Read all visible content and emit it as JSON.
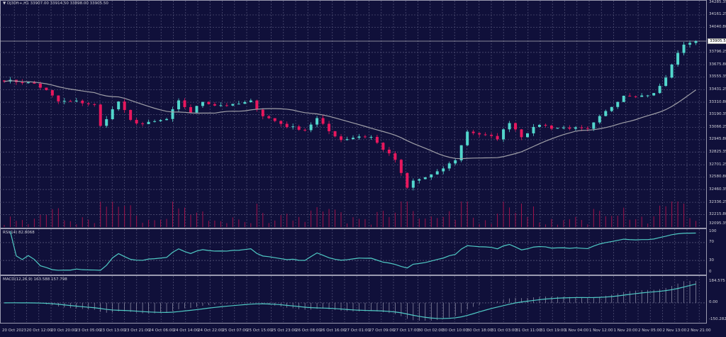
{
  "header": {
    "symbol": "DJ30ft+,H1",
    "open": "33907.00",
    "high": "33914.50",
    "low": "33898.00",
    "close": "33905.50"
  },
  "colors": {
    "background": "#10103a",
    "grid": "#4c4c72",
    "up": "#52d6cc",
    "down": "#e8175d",
    "ma": "#a0a0a8",
    "indicator": "#4fc9c4",
    "volume": "#a0124a"
  },
  "price_axis": [
    "34285.35",
    "34161.25",
    "34040.80",
    "33905.50",
    "33796.25",
    "33675.80",
    "33555.35",
    "33431.25",
    "33310.80",
    "33190.35",
    "33066.25",
    "32945.80",
    "32825.35",
    "32701.25",
    "32580.80",
    "32460.35",
    "32336.25",
    "32215.80",
    "32095.35"
  ],
  "current_price": "33905.50",
  "rsi": {
    "label": "RSI(14) 82.8068",
    "levels": [
      "100",
      "70",
      "30",
      "0"
    ]
  },
  "macd": {
    "label": "MACD(12,26,9) 163.588 157.798",
    "levels": [
      "184.575",
      "0.00",
      "-150.282"
    ]
  },
  "time_axis": [
    "20 Oct 2023",
    "20 Oct 12:00",
    "20 Oct 20:00",
    "23 Oct 05:00",
    "23 Oct 13:00",
    "23 Oct 21:00",
    "24 Oct 06:00",
    "24 Oct 14:00",
    "24 Oct 22:00",
    "25 Oct 07:00",
    "25 Oct 15:00",
    "25 Oct 23:00",
    "26 Oct 08:00",
    "26 Oct 16:00",
    "27 Oct 01:00",
    "27 Oct 09:00",
    "27 Oct 17:00",
    "30 Oct 02:00",
    "30 Oct 10:00",
    "30 Oct 18:00",
    "31 Oct 03:00",
    "31 Oct 11:00",
    "31 Oct 19:00",
    "1 Nov 04:00",
    "1 Nov 12:00",
    "1 Nov 20:00",
    "2 Nov 05:00",
    "2 Nov 13:00",
    "2 Nov 21:00"
  ],
  "chart_data": {
    "type": "candlestick",
    "price_range": [
      32095.35,
      34285.35
    ],
    "close_keypoints": [
      [
        0,
        33525
      ],
      [
        5,
        33491
      ],
      [
        7,
        33422
      ],
      [
        9,
        33318
      ],
      [
        12,
        33318
      ],
      [
        15,
        33283
      ],
      [
        16,
        33076
      ],
      [
        19,
        33318
      ],
      [
        21,
        33131
      ],
      [
        23,
        33097
      ],
      [
        27,
        33145
      ],
      [
        29,
        33318
      ],
      [
        31,
        33214
      ],
      [
        33,
        33318
      ],
      [
        35,
        33283
      ],
      [
        38,
        33283
      ],
      [
        41,
        33318
      ],
      [
        43,
        33180
      ],
      [
        47,
        33076
      ],
      [
        50,
        33042
      ],
      [
        52,
        33152
      ],
      [
        54,
        33028
      ],
      [
        56,
        32945
      ],
      [
        59,
        32979
      ],
      [
        61,
        32972
      ],
      [
        63,
        32855
      ],
      [
        65,
        32751
      ],
      [
        67,
        32475
      ],
      [
        68,
        32544
      ],
      [
        70,
        32579
      ],
      [
        72,
        32627
      ],
      [
        75,
        32751
      ],
      [
        77,
        33028
      ],
      [
        79,
        33000
      ],
      [
        82,
        32959
      ],
      [
        84,
        33118
      ],
      [
        86,
        32979
      ],
      [
        89,
        33097
      ],
      [
        91,
        33062
      ],
      [
        94,
        33062
      ],
      [
        97,
        33042
      ],
      [
        99,
        33166
      ],
      [
        101,
        33270
      ],
      [
        103,
        33380
      ],
      [
        106,
        33373
      ],
      [
        108,
        33394
      ],
      [
        110,
        33546
      ],
      [
        111,
        33684
      ],
      [
        113,
        33878
      ],
      [
        115,
        33905
      ]
    ]
  }
}
